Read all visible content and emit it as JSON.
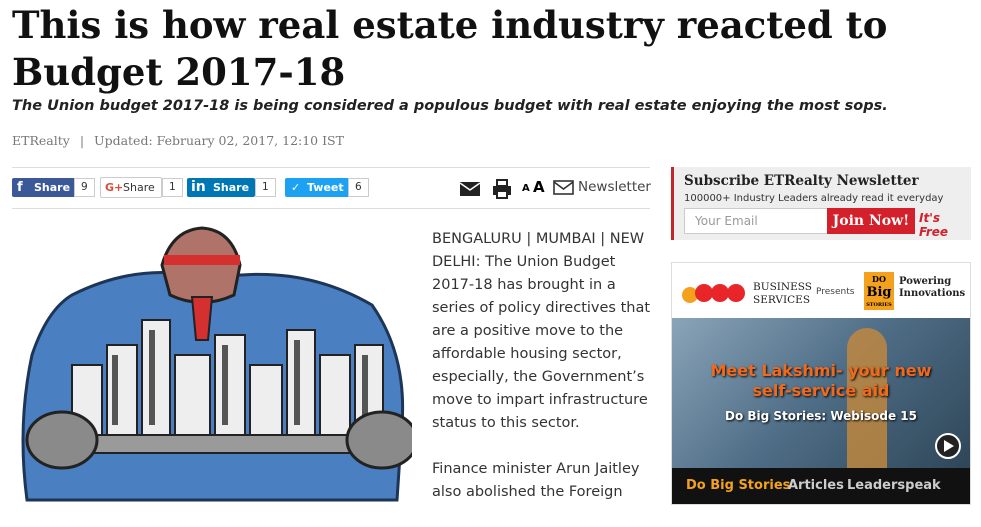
{
  "article": {
    "title": "This is how real estate industry reacted to Budget 2017-18",
    "subtitle": "The Union budget 2017-18 is being considered a populous budget with real estate enjoying the most sops.",
    "source": "ETRealty",
    "updated": "Updated: February 02, 2017, 12:10 IST",
    "share": [
      {
        "label": "Share",
        "count": "9"
      },
      {
        "label": "Share",
        "count": "1"
      },
      {
        "label": "Share",
        "count": "1"
      },
      {
        "label": "Tweet",
        "count": "6"
      }
    ],
    "font_small": "A",
    "font_large": "A",
    "newsletter_link": "Newsletter",
    "paragraphs": [
      "BENGALURU | MUMBAI | NEW DELHI: The Union Budget 2017-18 has brought in a series of policy directives that are a positive move to the affordable housing sector, especially, the Government’s move to impart infrastructure status to this sector.",
      "Finance minister Arun Jaitley also abolished the Foreign"
    ]
  },
  "sidebar": {
    "newsletter": {
      "title": "Subscribe ETRealty Newsletter",
      "subtitle": "100000+ Industry Leaders already read it everyday",
      "placeholder": "Your Email",
      "button": "Join Now!",
      "tag": "It's Free"
    },
    "ad": {
      "sponsor_line1": "BUSINESS",
      "sponsor_line2": "SERVICES",
      "presents": "Presents",
      "brand_top": "DO",
      "brand_main": "Big",
      "brand_bottom": "STORIES",
      "tagline_line1": "Powering",
      "tagline_line2": "Innovations",
      "headline_line1": "Meet Lakshmi- your new",
      "headline_line2": "self-service aid",
      "episode": "Do Big Stories: Webisode 15",
      "tabs": [
        "Do Big Stories",
        "Articles",
        "Leaderspeak"
      ]
    }
  }
}
